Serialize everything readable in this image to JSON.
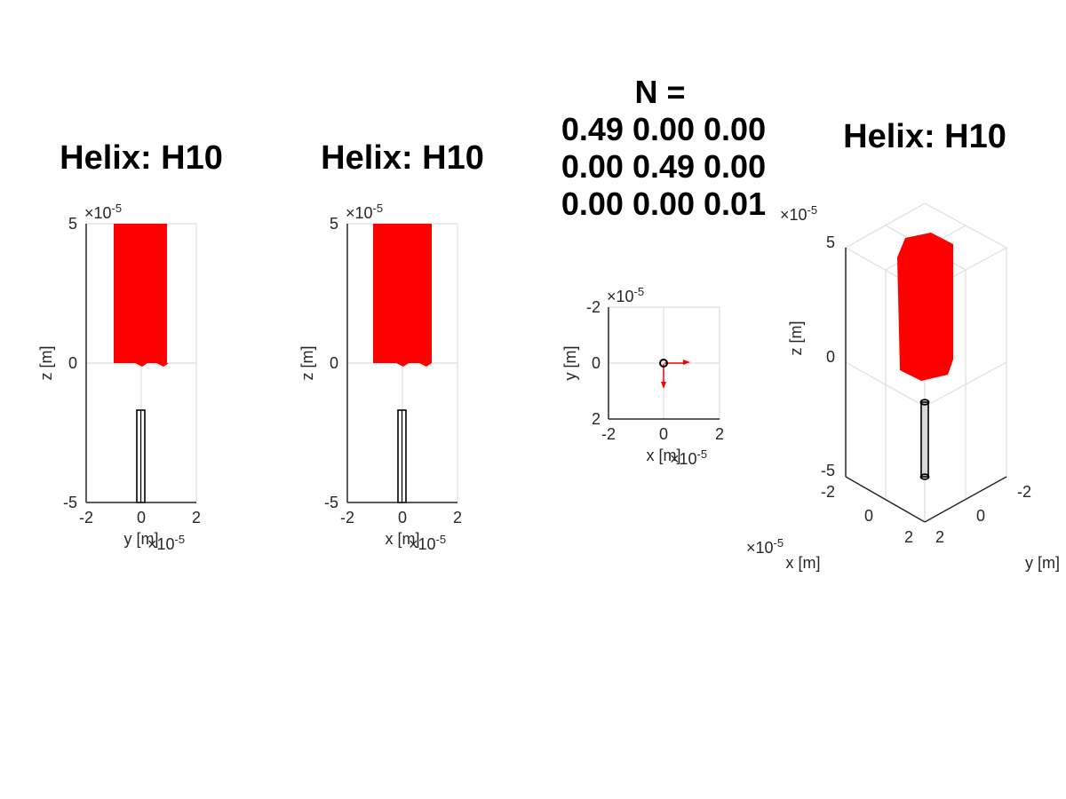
{
  "figure": {
    "n_matrix": {
      "header": "N =",
      "rows": [
        "0.49 0.00 0.00",
        "0.00 0.49 0.00",
        "0.00 0.00 0.01"
      ]
    }
  },
  "chart_data": [
    {
      "type": "scatter",
      "view": "side-yz",
      "title": "Helix: H10",
      "xlabel": "y [m]",
      "ylabel": "z [m]",
      "xlim": [
        -2e-05,
        2e-05
      ],
      "ylim": [
        -5e-05,
        5e-05
      ],
      "xticks": [
        "-2",
        "0",
        "2"
      ],
      "yticks": [
        "5",
        "0",
        "-5"
      ],
      "x_exponent": "×10-5",
      "y_exponent": "×10-5",
      "grid": true,
      "elements": {
        "magnetic_body": {
          "color": "#ff0000",
          "x_range": [
            -1e-05,
            1e-05
          ],
          "z_range": [
            0,
            5e-05
          ]
        },
        "helix_rod": {
          "color": "#000000",
          "x_range": [
            -1.5e-06,
            1.5e-06
          ],
          "z_range": [
            -5e-05,
            -1.7e-05
          ]
        }
      }
    },
    {
      "type": "scatter",
      "view": "side-xz",
      "title": "Helix: H10",
      "xlabel": "x [m]",
      "ylabel": "z [m]",
      "xlim": [
        -2e-05,
        2e-05
      ],
      "ylim": [
        -5e-05,
        5e-05
      ],
      "xticks": [
        "-2",
        "0",
        "2"
      ],
      "yticks": [
        "5",
        "0",
        "-5"
      ],
      "x_exponent": "×10-5",
      "y_exponent": "×10-5",
      "grid": true,
      "elements": {
        "magnetic_body": {
          "color": "#ff0000",
          "x_range": [
            -1e-05,
            1e-05
          ],
          "z_range": [
            0,
            5e-05
          ]
        },
        "helix_rod": {
          "color": "#000000",
          "x_range": [
            -1.5e-06,
            1.5e-06
          ],
          "z_range": [
            -5e-05,
            -1.7e-05
          ]
        }
      }
    },
    {
      "type": "scatter",
      "view": "top-xy",
      "title": "",
      "xlabel": "x [m]",
      "ylabel": "y [m]",
      "xlim": [
        -2e-05,
        2e-05
      ],
      "ylim": [
        -2e-05,
        2e-05
      ],
      "xticks": [
        "-2",
        "0",
        "2"
      ],
      "yticks": [
        "-2",
        "0",
        "2"
      ],
      "x_exponent": "×10-5",
      "y_exponent": "×10-5",
      "grid": true,
      "elements": {
        "origin_marker": {
          "color": "#000000",
          "x": 0,
          "y": 0
        },
        "arrow_x": {
          "color": "#ff0000",
          "dx": 9e-06,
          "dy": 0
        },
        "arrow_y": {
          "color": "#ff0000",
          "dx": 0,
          "dy": 9e-06
        }
      }
    },
    {
      "type": "scatter",
      "view": "3d",
      "title": "Helix: H10",
      "xlabel": "x [m]",
      "ylabel": "y [m]",
      "zlabel": "z [m]",
      "xlim": [
        -2e-05,
        2e-05
      ],
      "ylim": [
        -2e-05,
        2e-05
      ],
      "zlim": [
        -5e-05,
        5e-05
      ],
      "xticks": [
        "-2",
        "0",
        "2"
      ],
      "yticks": [
        "-2",
        "0",
        "2"
      ],
      "zticks": [
        "5",
        "0",
        "-5"
      ],
      "x_exponent": "×10-5",
      "z_exponent": "×10-5",
      "grid": true,
      "elements": {
        "magnetic_body": {
          "color": "#ff0000",
          "z_range": [
            0,
            5e-05
          ]
        },
        "helix_rod": {
          "color": "#000000",
          "z_range": [
            -5e-05,
            -1.7e-05
          ]
        }
      }
    }
  ]
}
